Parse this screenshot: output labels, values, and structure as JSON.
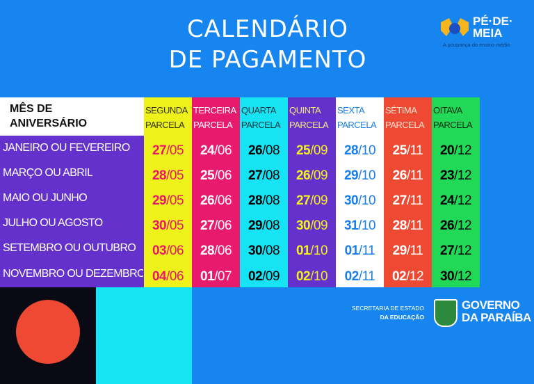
{
  "title": {
    "line1": "CALENDÁRIO",
    "line2": "DE PAGAMENTO"
  },
  "logo": {
    "name": "PÉ·DE·MEIA",
    "line1": "PÉ·DE·",
    "line2": "MEIA",
    "tagline": "A poupança do ensino médio"
  },
  "table": {
    "header_label_line1": "MÊS DE",
    "header_label_line2": "ANIVERSÁRIO",
    "columns": [
      {
        "l1": "SEGUNDA",
        "l2": "PARCELA",
        "bg": "#eef21a",
        "head": "#333300",
        "day": "#e8186a",
        "month": "#e8186a"
      },
      {
        "l1": "TERCEIRA",
        "l2": "PARCELA",
        "bg": "#e81a6e",
        "head": "#ffffff",
        "day": "#ffffff",
        "month": "#ffffff"
      },
      {
        "l1": "QUARTA",
        "l2": "PARCELA",
        "bg": "#16e4f4",
        "head": "#0a3a40",
        "day": "#000000",
        "month": "#000000"
      },
      {
        "l1": "QUINTA",
        "l2": "PARCELA",
        "bg": "#6431cc",
        "head": "#f0ea7a",
        "day": "#f3f01e",
        "month": "#f3f01e"
      },
      {
        "l1": "SEXTA",
        "l2": "PARCELA",
        "bg": "#ffffff",
        "head": "#1a7ee8",
        "day": "#1a7ee8",
        "month": "#1a7ee8"
      },
      {
        "l1": "SÉTIMA",
        "l2": "PARCELA",
        "bg": "#ee4a33",
        "head": "#ffe0d0",
        "day": "#ffffff",
        "month": "#ffffff"
      },
      {
        "l1": "OITAVA",
        "l2": "PARCELA",
        "bg": "#21d957",
        "head": "#062a10",
        "day": "#000000",
        "month": "#000000"
      }
    ],
    "rows": [
      {
        "label": "JANEIRO OU FEVEREIRO",
        "dates": [
          [
            "27",
            "/05"
          ],
          [
            "24",
            "/06"
          ],
          [
            "26",
            "/08"
          ],
          [
            "25",
            "/09"
          ],
          [
            "28",
            "/10"
          ],
          [
            "25",
            "/11"
          ],
          [
            "20",
            "/12"
          ]
        ]
      },
      {
        "label": "MARÇO OU ABRIL",
        "dates": [
          [
            "28",
            "/05"
          ],
          [
            "25",
            "/06"
          ],
          [
            "27",
            "/08"
          ],
          [
            "26",
            "/09"
          ],
          [
            "29",
            "/10"
          ],
          [
            "26",
            "/11"
          ],
          [
            "23",
            "/12"
          ]
        ]
      },
      {
        "label": "MAIO OU JUNHO",
        "dates": [
          [
            "29",
            "/05"
          ],
          [
            "26",
            "/06"
          ],
          [
            "28",
            "/08"
          ],
          [
            "27",
            "/09"
          ],
          [
            "30",
            "/10"
          ],
          [
            "27",
            "/11"
          ],
          [
            "24",
            "/12"
          ]
        ]
      },
      {
        "label": "JULHO OU AGOSTO",
        "dates": [
          [
            "30",
            "/05"
          ],
          [
            "27",
            "/06"
          ],
          [
            "29",
            "/08"
          ],
          [
            "30",
            "/09"
          ],
          [
            "31",
            "/10"
          ],
          [
            "28",
            "/11"
          ],
          [
            "26",
            "/12"
          ]
        ]
      },
      {
        "label": "SETEMBRO OU OUTUBRO",
        "dates": [
          [
            "03",
            "/06"
          ],
          [
            "28",
            "/06"
          ],
          [
            "30",
            "/08"
          ],
          [
            "01",
            "/10"
          ],
          [
            "01",
            "/11"
          ],
          [
            "29",
            "/11"
          ],
          [
            "27",
            "/12"
          ]
        ]
      },
      {
        "label": "NOVEMBRO OU DEZEMBRO",
        "dates": [
          [
            "04",
            "/06"
          ],
          [
            "01",
            "/07"
          ],
          [
            "02",
            "/09"
          ],
          [
            "02",
            "/10"
          ],
          [
            "02",
            "/11"
          ],
          [
            "02",
            "/12"
          ],
          [
            "30",
            "/12"
          ]
        ]
      }
    ]
  },
  "footer": {
    "sec_line1": "SECRETARIA DE ESTADO",
    "sec_line2": "DA EDUCAÇÃO",
    "gov_line1": "GOVERNO",
    "gov_line2": "DA PARAÍBA"
  }
}
